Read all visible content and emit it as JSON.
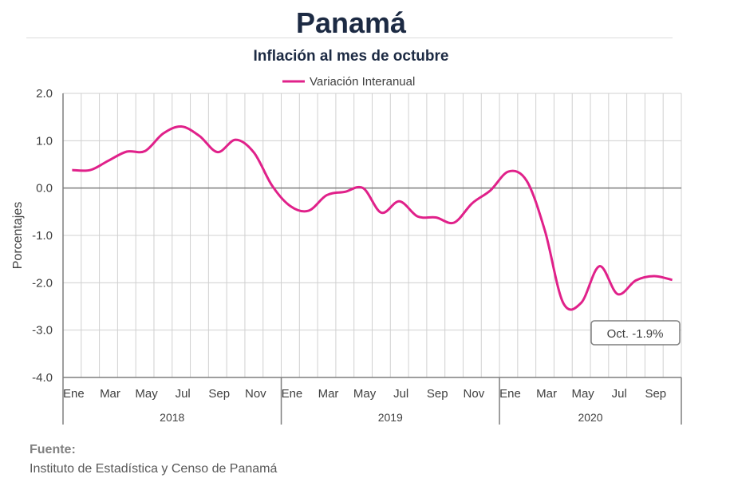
{
  "header": {
    "title": "Panamá"
  },
  "chart_data": {
    "type": "line",
    "title": "Inflación al mes de octubre",
    "ylabel": "Porcentajes",
    "xlabel": "",
    "ylim": [
      -4.0,
      2.0
    ],
    "yticks": [
      "2.0",
      "1.0",
      "0.0",
      "-1.0",
      "-2.0",
      "-3.0",
      "-4.0"
    ],
    "ytick_values": [
      2.0,
      1.0,
      0.0,
      -1.0,
      -2.0,
      -3.0,
      -4.0
    ],
    "grid": true,
    "legend_position": "top",
    "month_labels": [
      "Ene",
      "Mar",
      "May",
      "Jul",
      "Sep",
      "Nov",
      "Ene",
      "Mar",
      "May",
      "Jul",
      "Sep",
      "Nov",
      "Ene",
      "Mar",
      "May",
      "Jul",
      "Sep"
    ],
    "years": [
      "2018",
      "2019",
      "2020"
    ],
    "x": [
      "2018-01",
      "2018-02",
      "2018-03",
      "2018-04",
      "2018-05",
      "2018-06",
      "2018-07",
      "2018-08",
      "2018-09",
      "2018-10",
      "2018-11",
      "2018-12",
      "2019-01",
      "2019-02",
      "2019-03",
      "2019-04",
      "2019-05",
      "2019-06",
      "2019-07",
      "2019-08",
      "2019-09",
      "2019-10",
      "2019-11",
      "2019-12",
      "2020-01",
      "2020-02",
      "2020-03",
      "2020-04",
      "2020-05",
      "2020-06",
      "2020-07",
      "2020-08",
      "2020-09",
      "2020-10"
    ],
    "series": [
      {
        "name": "Variación Interanual",
        "color": "#e0218a",
        "values": [
          0.38,
          0.38,
          0.58,
          0.77,
          0.78,
          1.15,
          1.3,
          1.1,
          0.76,
          1.02,
          0.75,
          0.05,
          -0.38,
          -0.48,
          -0.15,
          -0.08,
          0.0,
          -0.52,
          -0.28,
          -0.6,
          -0.62,
          -0.73,
          -0.32,
          -0.05,
          0.35,
          0.15,
          -0.9,
          -2.42,
          -2.42,
          -1.65,
          -2.24,
          -1.95,
          -1.86,
          -1.94
        ]
      }
    ],
    "annotation": "Oct. -1.9%"
  },
  "colors": {
    "series": "#e0218a",
    "grid": "#d0d0d0",
    "axis": "#7f7f7f",
    "title": "#1c2a43"
  },
  "footer": {
    "source_label": "Fuente:",
    "source_text": "Instituto de Estadística y Censo de Panamá"
  }
}
